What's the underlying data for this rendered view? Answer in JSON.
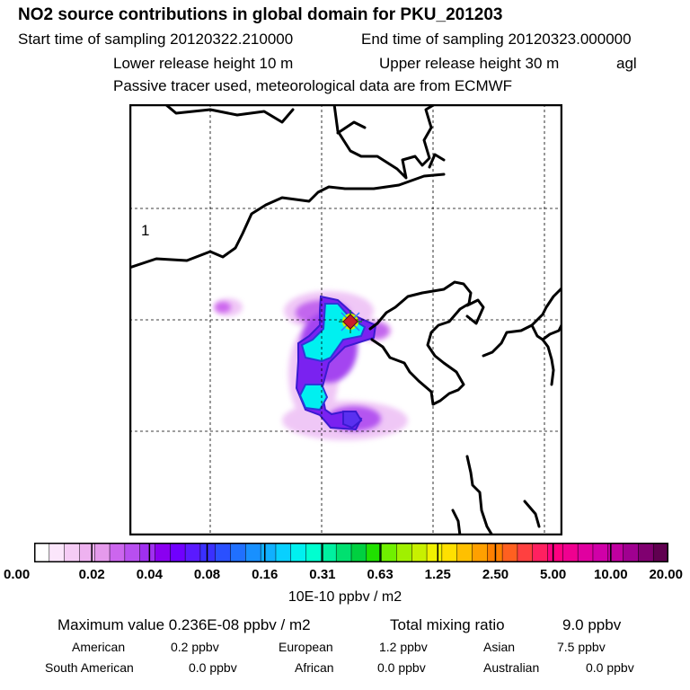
{
  "header": {
    "title": "NO2 source contributions in global domain for PKU_201203",
    "start": "Start time of sampling 20120322.210000",
    "end": "End time of sampling 20120323.000000",
    "lower": "Lower release height   10 m",
    "upper": "Upper release height   30 m",
    "agl": "agl",
    "tracer": "Passive tracer used, meteorological data are from ECMWF"
  },
  "map": {
    "panel_label": "1",
    "receptor_marker": "receptor-star-icon"
  },
  "colorbar": {
    "ticks": [
      "0.00",
      "0.02",
      "0.04",
      "0.08",
      "0.16",
      "0.31",
      "0.63",
      "1.25",
      "2.50",
      "5.00",
      "10.00",
      "20.00"
    ],
    "units": "10E-10 ppbv / m2",
    "colors": [
      "#ffffff",
      "#fbe6fb",
      "#f5ccf5",
      "#eeb2f0",
      "#e59aec",
      "#cc66ee",
      "#b84ff0",
      "#a030f0",
      "#8a00f0",
      "#7000ff",
      "#5a1aff",
      "#3a30ff",
      "#2a50ff",
      "#2070ff",
      "#1890ff",
      "#10b0ff",
      "#08d0ff",
      "#00f0f0",
      "#00ffd0",
      "#00f0a0",
      "#00e070",
      "#00d040",
      "#20e000",
      "#70f000",
      "#a0f000",
      "#c8f000",
      "#f0f000",
      "#ffe000",
      "#ffc000",
      "#ffa000",
      "#ff8000",
      "#ff6020",
      "#ff4040",
      "#ff2060",
      "#ff0080",
      "#f00090",
      "#e000a0",
      "#d000a8",
      "#c000a0",
      "#a00090",
      "#800070",
      "#600050"
    ]
  },
  "summary": {
    "max_label": "Maximum value  0.236E-08 ppbv / m2",
    "total_label": "Total mixing ratio",
    "total_value": "9.0 ppbv",
    "american_label": "American",
    "american_value": "0.2 ppbv",
    "european_label": "European",
    "european_value": "1.2 ppbv",
    "asian_label": "Asian",
    "asian_value": "7.5 ppbv",
    "south_american_label": "South American",
    "south_american_value": "0.0 ppbv",
    "african_label": "African",
    "african_value": "0.0 ppbv",
    "australian_label": "Australian",
    "australian_value": "0.0 ppbv"
  }
}
